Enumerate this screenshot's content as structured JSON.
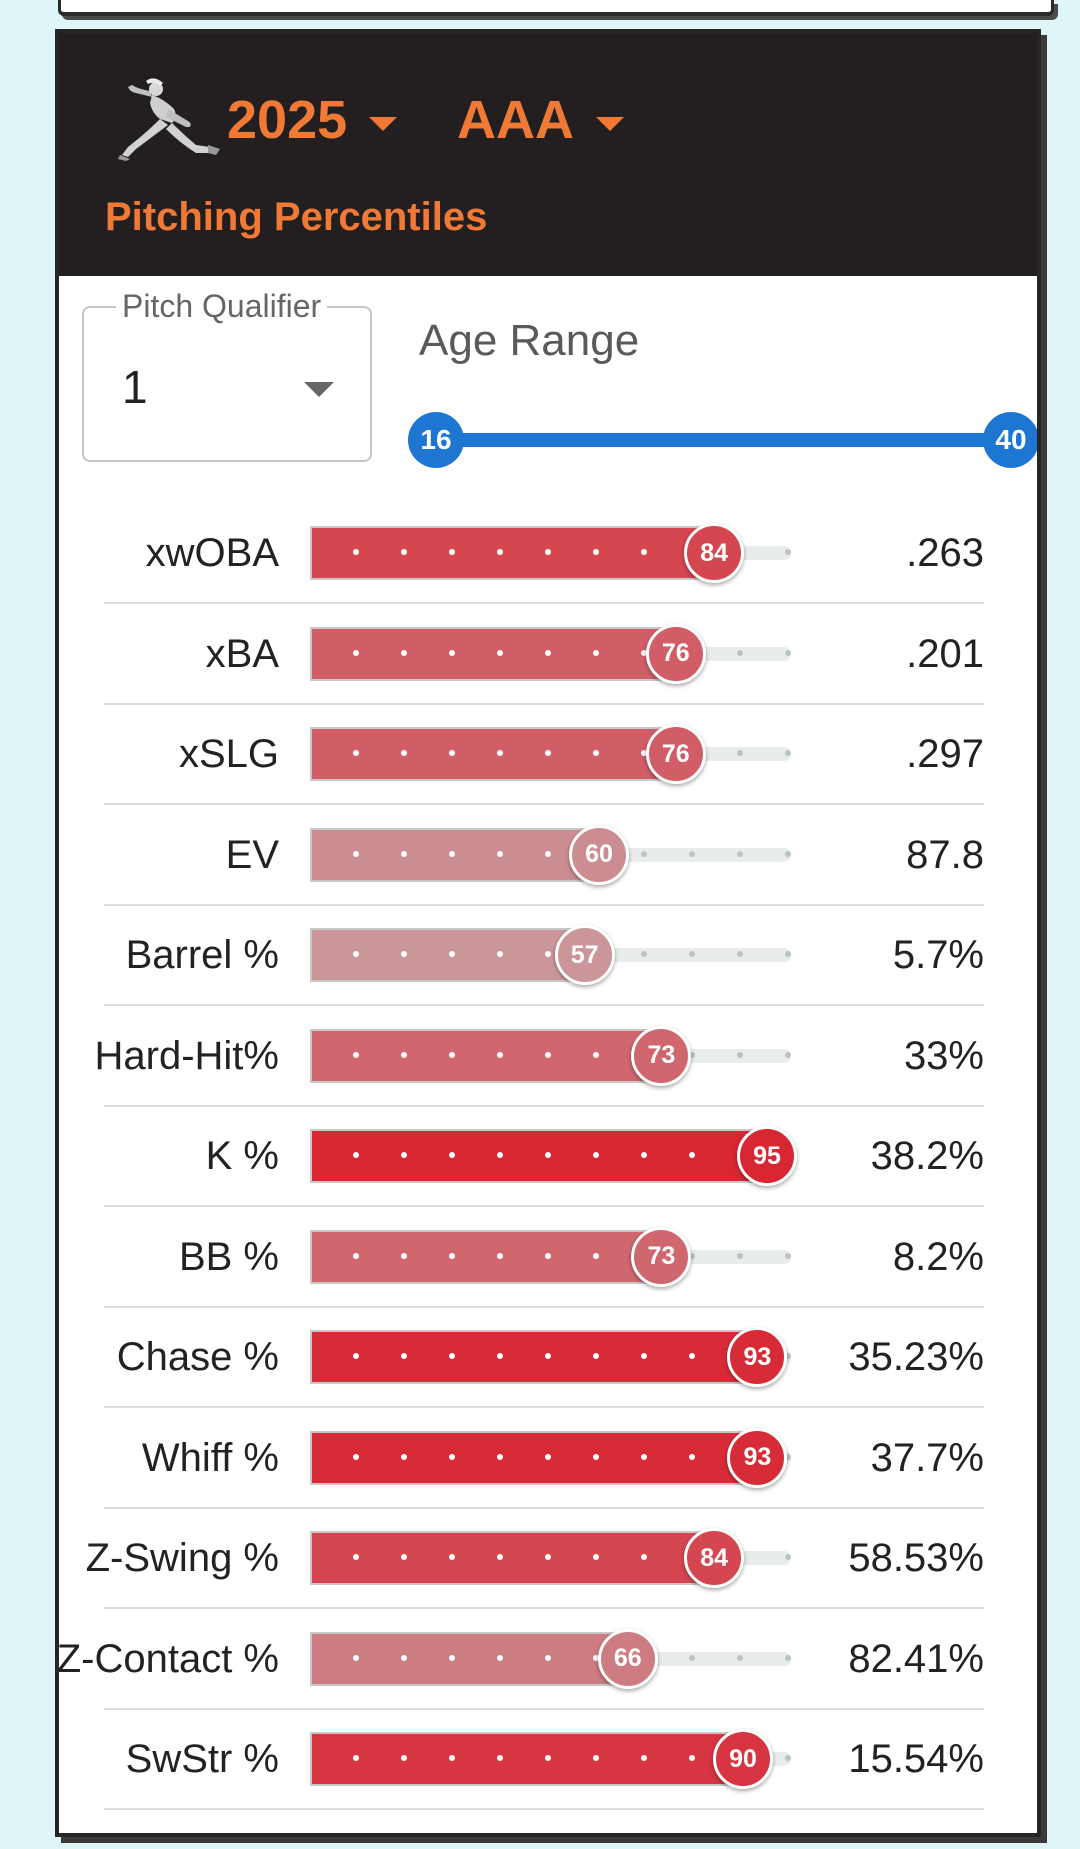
{
  "header": {
    "year": "2025",
    "level": "AAA",
    "title": "Pitching Percentiles",
    "logo_icon": "pitcher-silhouette-icon",
    "accent_color": "#f07a35",
    "background_color": "#231f20"
  },
  "controls": {
    "pitch_qualifier_label": "Pitch Qualifier",
    "pitch_qualifier_value": "1",
    "age_range_label": "Age Range",
    "age_min": "16",
    "age_max": "40",
    "slider_color": "#1d76d2"
  },
  "metrics": [
    {
      "label": "xwOBA",
      "percentile": 84,
      "percentile_text": "84",
      "value": ".263"
    },
    {
      "label": "xBA",
      "percentile": 76,
      "percentile_text": "76",
      "value": ".201"
    },
    {
      "label": "xSLG",
      "percentile": 76,
      "percentile_text": "76",
      "value": ".297"
    },
    {
      "label": "EV",
      "percentile": 60,
      "percentile_text": "60",
      "value": "87.8"
    },
    {
      "label": "Barrel %",
      "percentile": 57,
      "percentile_text": "57",
      "value": "5.7%"
    },
    {
      "label": "Hard-Hit%",
      "percentile": 73,
      "percentile_text": "73",
      "value": "33%"
    },
    {
      "label": "K %",
      "percentile": 95,
      "percentile_text": "95",
      "value": "38.2%"
    },
    {
      "label": "BB %",
      "percentile": 73,
      "percentile_text": "73",
      "value": "8.2%"
    },
    {
      "label": "Chase %",
      "percentile": 93,
      "percentile_text": "93",
      "value": "35.23%"
    },
    {
      "label": "Whiff %",
      "percentile": 93,
      "percentile_text": "93",
      "value": "37.7%"
    },
    {
      "label": "Z-Swing %",
      "percentile": 84,
      "percentile_text": "84",
      "value": "58.53%"
    },
    {
      "label": "Z-Contact %",
      "percentile": 66,
      "percentile_text": "66",
      "value": "82.41%"
    },
    {
      "label": "SwStr %",
      "percentile": 90,
      "percentile_text": "90",
      "value": "15.54%"
    }
  ]
}
